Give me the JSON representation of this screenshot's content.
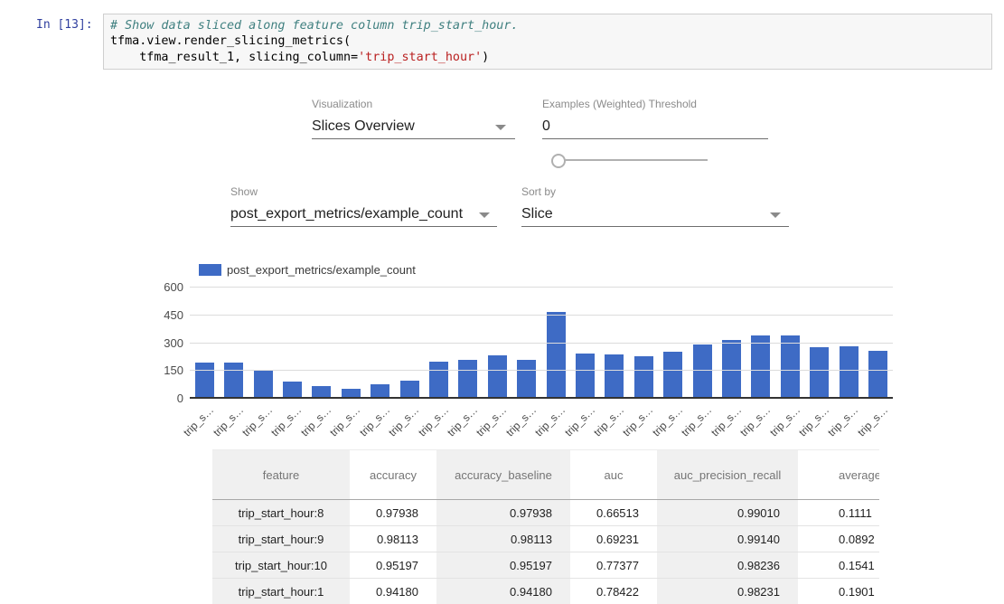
{
  "notebook": {
    "prompt": "In [13]:",
    "code_lines": [
      [
        {
          "t": "# Show data sliced along feature column trip_start_hour.",
          "c": "comment"
        }
      ],
      [
        {
          "t": "tfma.view.render_slicing_metrics(",
          "c": "plain"
        }
      ],
      [
        {
          "t": "    tfma_result_1, slicing_column=",
          "c": "plain"
        },
        {
          "t": "'trip_start_hour'",
          "c": "string"
        },
        {
          "t": ")",
          "c": "plain"
        }
      ]
    ]
  },
  "controls": {
    "visualization": {
      "label": "Visualization",
      "value": "Slices Overview"
    },
    "threshold": {
      "label": "Examples (Weighted) Threshold",
      "value": "0",
      "slider_position": "0%"
    },
    "show": {
      "label": "Show",
      "value": "post_export_metrics/example_count"
    },
    "sort_by": {
      "label": "Sort by",
      "value": "Slice"
    }
  },
  "chart_data": {
    "type": "bar",
    "legend": "post_export_metrics/example_count",
    "series_color": "#3e6bc5",
    "ylim": [
      0,
      600
    ],
    "y_ticks": [
      0,
      150,
      300,
      450,
      600
    ],
    "grid": true,
    "x_tick_label_truncated": "trip_s…",
    "num_bars": 24,
    "values": [
      190,
      190,
      152,
      90,
      62,
      48,
      72,
      95,
      196,
      207,
      228,
      207,
      465,
      240,
      236,
      225,
      251,
      289,
      313,
      339,
      339,
      274,
      280,
      256
    ]
  },
  "table": {
    "headers": [
      "feature",
      "accuracy",
      "accuracy_baseline",
      "auc",
      "auc_precision_recall",
      "average_loss"
    ],
    "rows": [
      [
        "trip_start_hour:8",
        "0.97938",
        "0.97938",
        "0.66513",
        "0.99010",
        "0.1111"
      ],
      [
        "trip_start_hour:9",
        "0.98113",
        "0.98113",
        "0.69231",
        "0.99140",
        "0.0892"
      ],
      [
        "trip_start_hour:10",
        "0.95197",
        "0.95197",
        "0.77377",
        "0.98236",
        "0.1541"
      ],
      [
        "trip_start_hour:1",
        "0.94180",
        "0.94180",
        "0.78422",
        "0.98231",
        "0.1901"
      ]
    ]
  }
}
